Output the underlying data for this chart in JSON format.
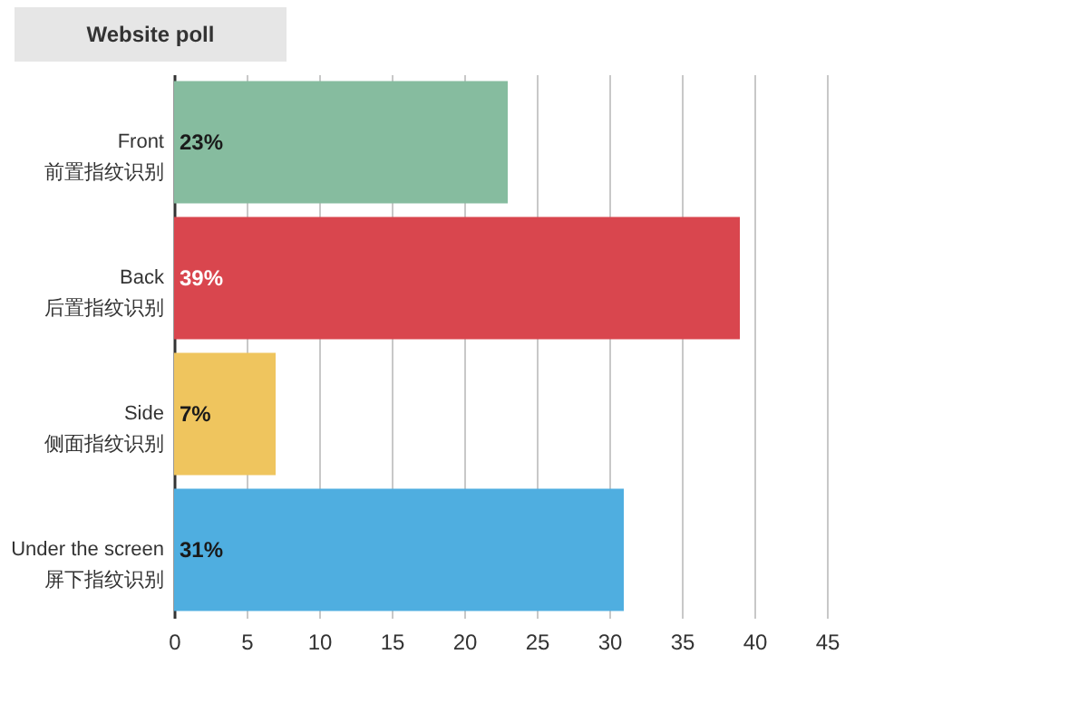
{
  "chart_data": {
    "type": "bar",
    "orientation": "horizontal",
    "categories": [
      "Front\n前置指纹识别",
      "Back\n后置指纹识别",
      "Side\n侧面指纹识别",
      "Under the screen\n屏下指纹识别"
    ],
    "values": [
      23,
      39,
      7,
      31
    ],
    "colors": [
      "#86bc9f",
      "#d9464e",
      "#efc55e",
      "#4faee0"
    ],
    "value_labels": [
      "23%",
      "39%",
      "7%",
      "31%"
    ],
    "xlim": [
      0,
      45
    ],
    "xticks": [
      0,
      5,
      10,
      15,
      20,
      25,
      30,
      35,
      40,
      45
    ],
    "grid": "x",
    "annotations": [
      "Website poll"
    ]
  }
}
